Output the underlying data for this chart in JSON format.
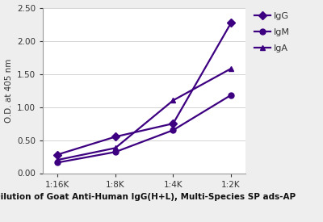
{
  "x_labels": [
    "1:16K",
    "1:8K",
    "1:4K",
    "1:2K"
  ],
  "x_positions": [
    0,
    1,
    2,
    3
  ],
  "series": [
    {
      "label": "IgG",
      "values": [
        0.28,
        0.55,
        0.75,
        2.27
      ],
      "color": "#3d0080",
      "marker": "D",
      "markersize": 5,
      "linewidth": 1.6
    },
    {
      "label": "IgM",
      "values": [
        0.16,
        0.32,
        0.65,
        1.18
      ],
      "color": "#3d0080",
      "marker": "o",
      "markersize": 5,
      "linewidth": 1.6
    },
    {
      "label": "IgA",
      "values": [
        0.2,
        0.38,
        1.1,
        1.58
      ],
      "color": "#3d0080",
      "marker": "^",
      "markersize": 5,
      "linewidth": 1.6
    }
  ],
  "ylabel": "O.D. at 405 nm",
  "xlabel": "Dilution of Goat Anti-Human IgG(H+L), Multi-Species SP ads-AP",
  "ylim": [
    0.0,
    2.5
  ],
  "yticks": [
    0.0,
    0.5,
    1.0,
    1.5,
    2.0,
    2.5
  ],
  "background_color": "#eeeeee",
  "plot_bg_color": "#ffffff",
  "axis_label_fontsize": 7.5,
  "tick_fontsize": 7.5,
  "legend_fontsize": 8.0
}
